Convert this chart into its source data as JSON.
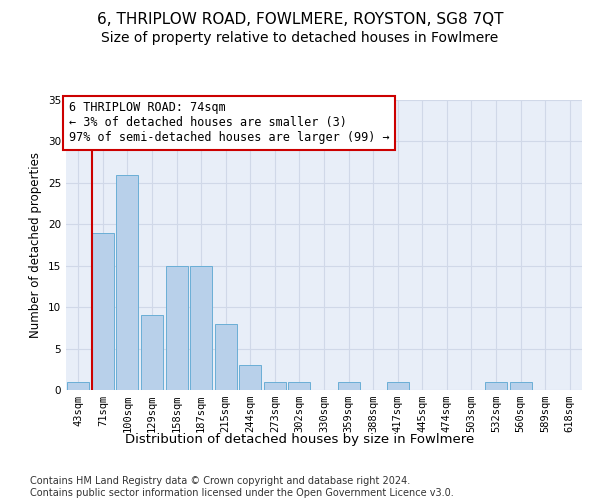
{
  "title": "6, THRIPLOW ROAD, FOWLMERE, ROYSTON, SG8 7QT",
  "subtitle": "Size of property relative to detached houses in Fowlmere",
  "xlabel": "Distribution of detached houses by size in Fowlmere",
  "ylabel": "Number of detached properties",
  "categories": [
    "43sqm",
    "71sqm",
    "100sqm",
    "129sqm",
    "158sqm",
    "187sqm",
    "215sqm",
    "244sqm",
    "273sqm",
    "302sqm",
    "330sqm",
    "359sqm",
    "388sqm",
    "417sqm",
    "445sqm",
    "474sqm",
    "503sqm",
    "532sqm",
    "560sqm",
    "589sqm",
    "618sqm"
  ],
  "values": [
    1,
    19,
    26,
    9,
    15,
    15,
    8,
    3,
    1,
    1,
    0,
    1,
    0,
    1,
    0,
    0,
    0,
    1,
    1,
    0,
    0
  ],
  "bar_color": "#b8d0ea",
  "bar_edge_color": "#6aaed6",
  "annotation_text": "6 THRIPLOW ROAD: 74sqm\n← 3% of detached houses are smaller (3)\n97% of semi-detached houses are larger (99) →",
  "annotation_box_color": "#ffffff",
  "annotation_box_edge_color": "#cc0000",
  "vline_color": "#cc0000",
  "vline_x": 0.545,
  "ylim": [
    0,
    35
  ],
  "yticks": [
    0,
    5,
    10,
    15,
    20,
    25,
    30,
    35
  ],
  "grid_color": "#d0d8e8",
  "bg_color": "#e8eef8",
  "footer_text": "Contains HM Land Registry data © Crown copyright and database right 2024.\nContains public sector information licensed under the Open Government Licence v3.0.",
  "title_fontsize": 11,
  "subtitle_fontsize": 10,
  "xlabel_fontsize": 9.5,
  "ylabel_fontsize": 8.5,
  "tick_fontsize": 7.5,
  "annotation_fontsize": 8.5,
  "footer_fontsize": 7
}
